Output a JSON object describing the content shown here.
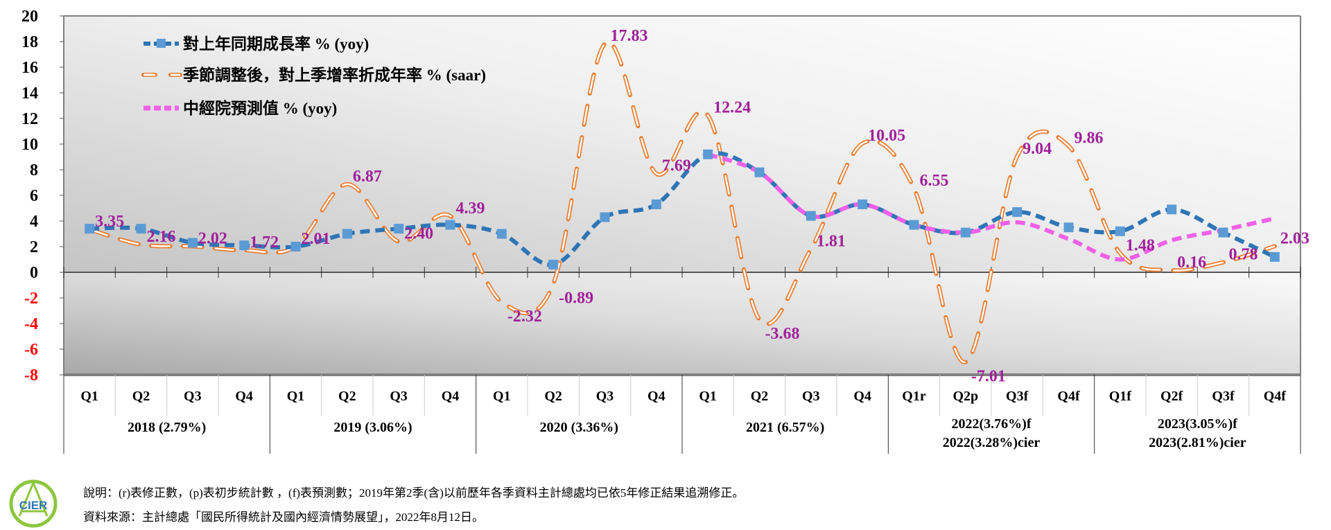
{
  "chart_data": {
    "type": "line",
    "ylim": [
      -8,
      20
    ],
    "yticks": [
      20,
      18,
      16,
      14,
      12,
      10,
      8,
      6,
      4,
      2,
      0,
      -2,
      -4,
      -6,
      -8
    ],
    "categories": [
      "Q1",
      "Q2",
      "Q3",
      "Q4",
      "Q1",
      "Q2",
      "Q3",
      "Q4",
      "Q1",
      "Q2",
      "Q3",
      "Q4",
      "Q1",
      "Q2",
      "Q3",
      "Q4",
      "Q1r",
      "Q2p",
      "Q3f",
      "Q4f",
      "Q1f",
      "Q2f",
      "Q3f",
      "Q4f"
    ],
    "groups": [
      {
        "label": "2018 (2.79%)",
        "label2": ""
      },
      {
        "label": "2019 (3.06%)",
        "label2": ""
      },
      {
        "label": "2020 (3.36%)",
        "label2": ""
      },
      {
        "label": "2021 (6.57%)",
        "label2": ""
      },
      {
        "label": "2022(3.76%)f",
        "label2": "2022(3.28%)cier"
      },
      {
        "label": "2023(3.05%)f",
        "label2": "2023(2.81%)cier"
      }
    ],
    "legend_position": "top-left",
    "series": [
      {
        "name": "對上年同期成長率 % (yoy)",
        "color": "#2e75b6",
        "marker_color": "#5b9bd5",
        "values": [
          3.4,
          3.4,
          2.3,
          2.1,
          2.0,
          3.0,
          3.4,
          3.7,
          3.0,
          0.6,
          4.3,
          5.3,
          9.2,
          7.8,
          4.4,
          5.3,
          3.7,
          3.1,
          4.7,
          3.5,
          3.2,
          4.9,
          3.1,
          1.2
        ]
      },
      {
        "name": "季節調整後，對上季增率折成年率 % (saar)",
        "color": "#ed7d31",
        "values": [
          3.35,
          2.16,
          2.02,
          1.72,
          2.01,
          6.87,
          2.4,
          4.39,
          -2.32,
          -0.89,
          17.83,
          7.69,
          12.24,
          -3.68,
          1.81,
          10.05,
          6.55,
          -7.01,
          9.04,
          9.86,
          1.48,
          0.16,
          0.78,
          2.03
        ],
        "labels": [
          "3.35",
          "2.16",
          "2.02",
          "1.72",
          "2.01",
          "6.87",
          "2.40",
          "4.39",
          "-2.32",
          "-0.89",
          "17.83",
          "7.69",
          "12.24",
          "-3.68",
          "1.81",
          "10.05",
          "6.55",
          "-7.01",
          "9.04",
          "9.86",
          "1.48",
          "0.16",
          "0.78",
          "2.03"
        ]
      },
      {
        "name": "中經院預測值 % (yoy)",
        "color": "#f060e8",
        "values": [
          null,
          null,
          null,
          null,
          null,
          null,
          null,
          null,
          null,
          null,
          null,
          null,
          9.2,
          7.8,
          4.4,
          5.3,
          3.7,
          3.1,
          3.9,
          2.6,
          1.0,
          2.5,
          3.3,
          4.2
        ]
      }
    ]
  },
  "footer": {
    "note": "說明：(r)表修正數，(p)表初步統計數 ，(f)表預測數；2019年第2季(含)以前歷年各季資料主計總處均已依5年修正結果追溯修正。",
    "source": "資料來源：主計總處「國民所得統計及國內經濟情勢展望」，2022年8月12日。",
    "logo_text": "CIER"
  }
}
